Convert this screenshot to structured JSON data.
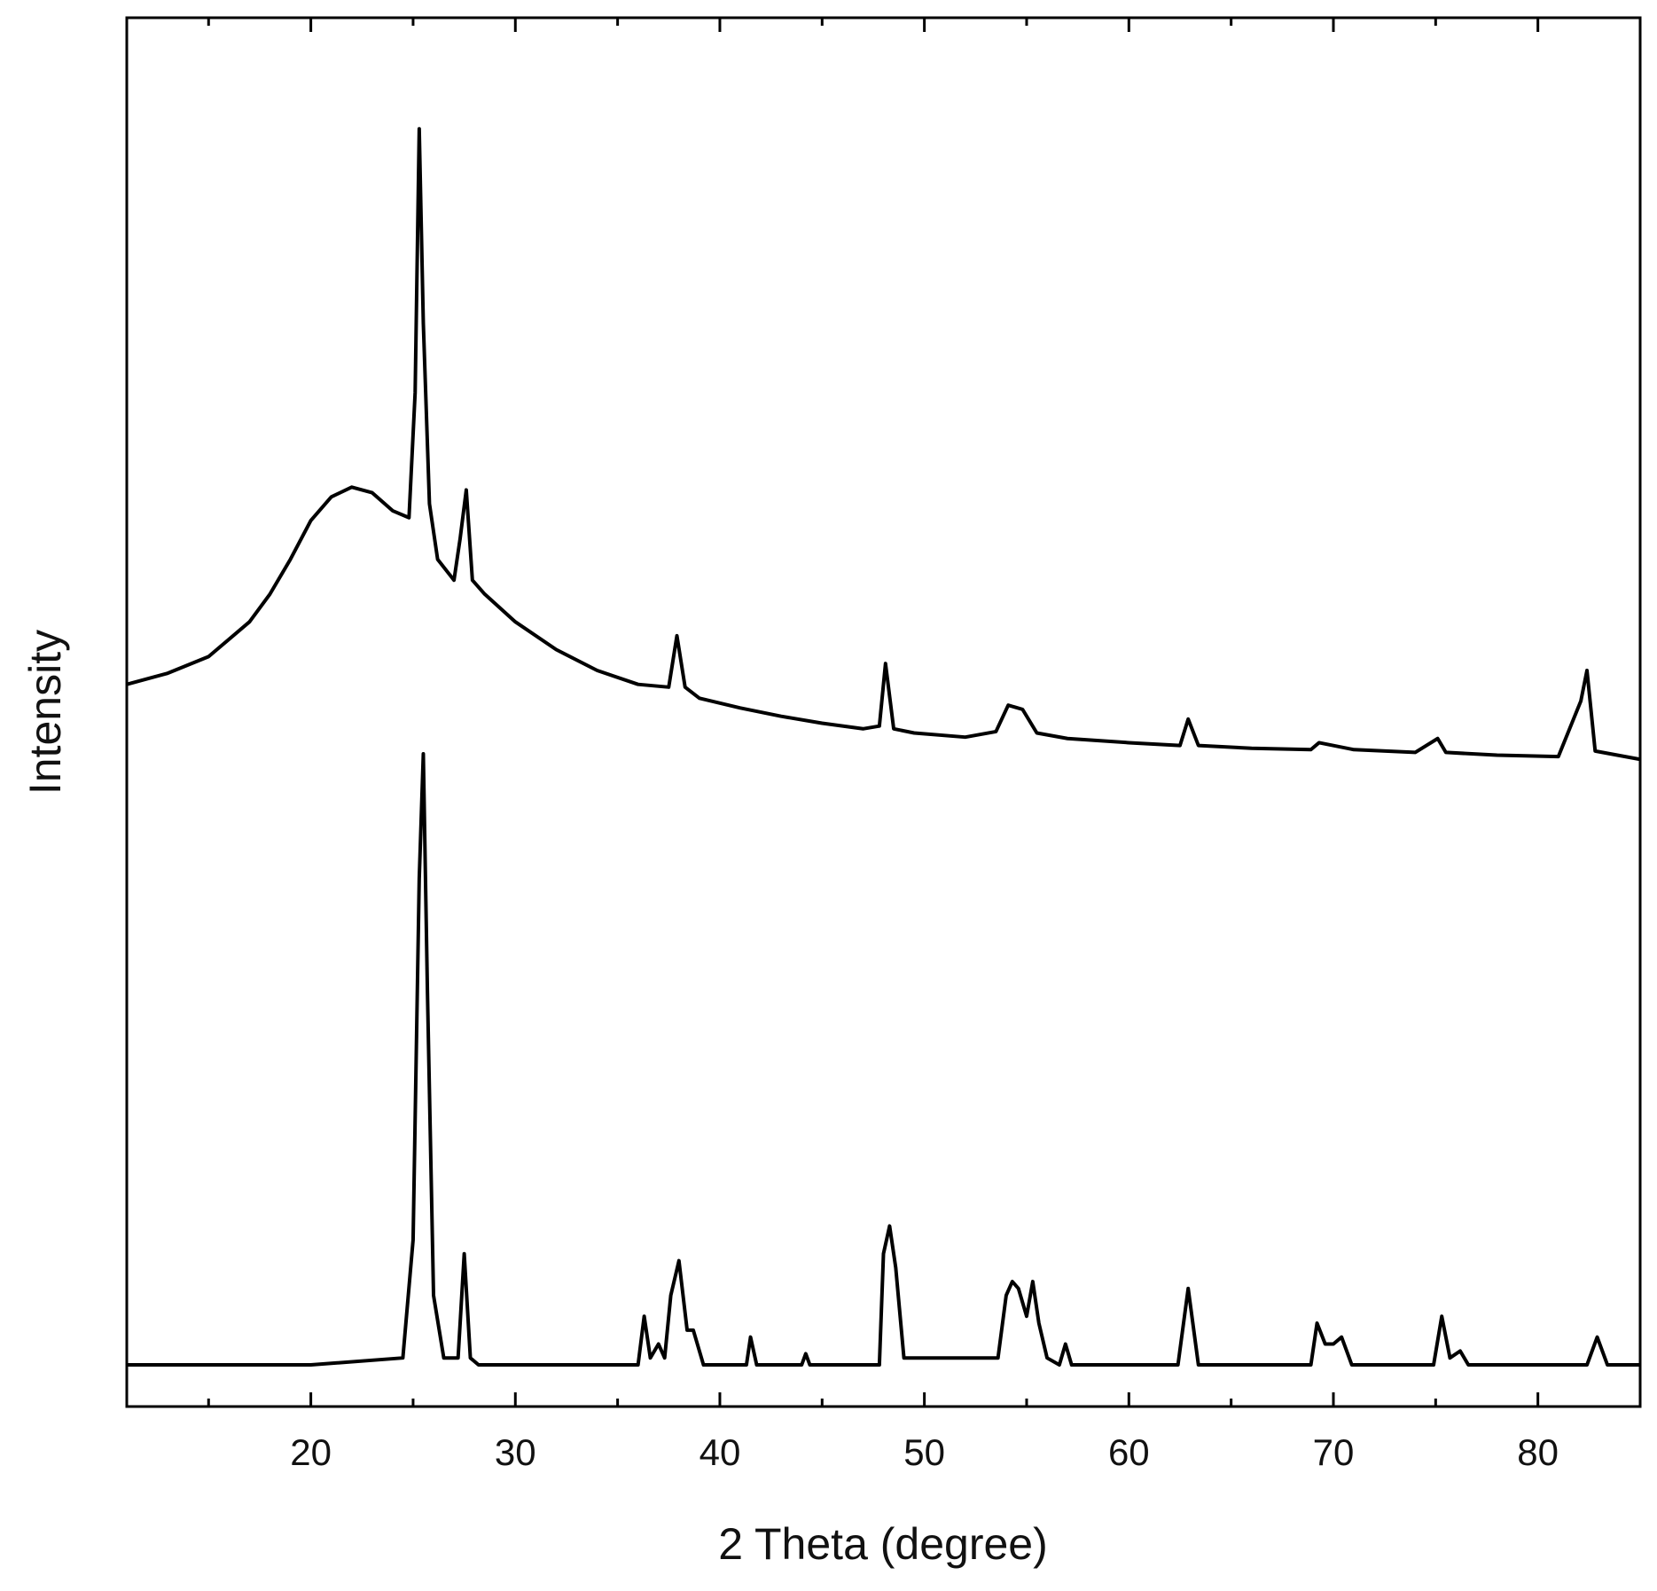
{
  "chart_data": {
    "type": "line",
    "title": "",
    "xlabel": "2 Theta (degree)",
    "ylabel": "Intensity",
    "xlim": [
      11,
      85
    ],
    "ylim": [
      0,
      100
    ],
    "x_major_ticks": [
      20,
      30,
      40,
      50,
      60,
      70,
      80
    ],
    "x_minor_ticks": [
      15,
      25,
      35,
      45,
      55,
      65,
      75
    ],
    "x_tick_labels": [
      "20",
      "30",
      "40",
      "50",
      "60",
      "70",
      "80"
    ],
    "y_tick_labels": [],
    "grid": false,
    "legend": "none",
    "line_color": "#000000",
    "series": [
      {
        "x": [
          11,
          13,
          15,
          17,
          18,
          19,
          20,
          21,
          22,
          23,
          24,
          24.8,
          25.1,
          25.3,
          25.5,
          25.8,
          26.2,
          27,
          27.3,
          27.6,
          27.9,
          28.5,
          30,
          32,
          34,
          36,
          37.5,
          37.9,
          38.3,
          39,
          41,
          43,
          45,
          47,
          47.8,
          48.1,
          48.5,
          49.5,
          52,
          53.5,
          54.1,
          54.8,
          55.5,
          57,
          60,
          62.5,
          62.9,
          63.4,
          66,
          68.9,
          69.3,
          71,
          74,
          75.1,
          75.5,
          78,
          81,
          82.1,
          82.4,
          82.8,
          85
        ],
        "y": [
          52,
          52.8,
          54,
          56.5,
          58.5,
          61,
          63.8,
          65.5,
          66.2,
          65.8,
          64.5,
          64,
          73,
          92,
          78,
          65,
          61,
          59.5,
          62.5,
          66,
          59.5,
          58.5,
          56.5,
          54.5,
          53,
          52,
          51.8,
          55.5,
          51.8,
          51,
          50.3,
          49.7,
          49.2,
          48.8,
          49,
          53.5,
          48.8,
          48.5,
          48.2,
          48.6,
          50.5,
          50.2,
          48.5,
          48.1,
          47.8,
          47.6,
          49.5,
          47.6,
          47.4,
          47.3,
          47.8,
          47.3,
          47.1,
          48.1,
          47.1,
          46.9,
          46.8,
          50.8,
          53,
          47.2,
          46.6
        ]
      },
      {
        "x": [
          11,
          20,
          24.5,
          25.0,
          25.3,
          25.5,
          25.7,
          26.0,
          26.5,
          27.2,
          27.5,
          27.8,
          28.2,
          36.0,
          36.3,
          36.6,
          37.0,
          37.3,
          37.6,
          38.0,
          38.4,
          38.7,
          39.2,
          41.3,
          41.5,
          41.8,
          44.0,
          44.2,
          44.4,
          47.8,
          48.0,
          48.3,
          48.6,
          49.0,
          53.6,
          54.0,
          54.3,
          54.6,
          55.0,
          55.3,
          55.6,
          56.0,
          56.6,
          56.9,
          57.2,
          62.4,
          62.9,
          63.4,
          68.9,
          69.2,
          69.6,
          70.0,
          70.4,
          70.9,
          74.9,
          75.3,
          75.7,
          76.2,
          76.6,
          82.4,
          82.9,
          83.4,
          85
        ],
        "y": [
          3,
          3,
          3.5,
          12,
          38,
          47,
          30,
          8,
          3.5,
          3.5,
          11,
          3.5,
          3,
          3,
          6.5,
          3.5,
          4.5,
          3.5,
          8,
          10.5,
          5.5,
          5.5,
          3,
          3,
          5,
          3,
          3,
          3.8,
          3,
          3,
          11,
          13,
          10,
          3.5,
          3.5,
          8,
          9,
          8.5,
          6.5,
          9,
          6,
          3.5,
          3,
          4.5,
          3,
          3,
          8.5,
          3,
          3,
          6,
          4.5,
          4.5,
          5,
          3,
          3,
          6.5,
          3.5,
          4,
          3,
          3,
          5,
          3,
          3
        ]
      }
    ]
  }
}
